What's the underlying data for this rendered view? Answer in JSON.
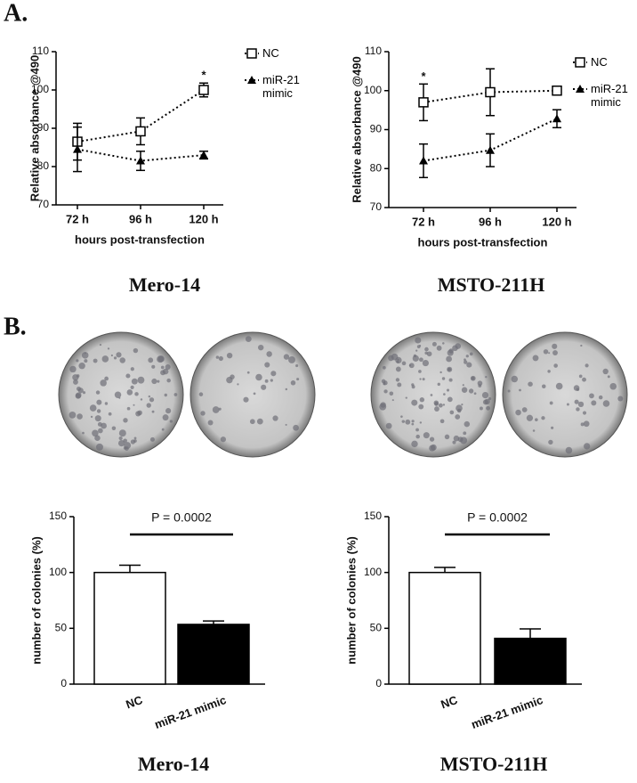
{
  "panel_labels": [
    "A.",
    "B."
  ],
  "chart_data": [
    {
      "type": "line",
      "caption": "Mero-14",
      "xlabel": "hours post-transfection",
      "ylabel": "Relative absorbance @490",
      "categories": [
        "72 h",
        "96 h",
        "120 h"
      ],
      "ylim": [
        70,
        110
      ],
      "yticks": [
        70,
        80,
        90,
        100,
        110
      ],
      "series": [
        {
          "name": "NC",
          "color": "#000000",
          "marker": "square-open",
          "values": [
            86.5,
            89.2,
            100
          ],
          "errors": [
            4.8,
            3.5,
            1.8
          ]
        },
        {
          "name": "miR-21 mimic",
          "color": "#000000",
          "marker": "triangle",
          "values": [
            84.5,
            81.5,
            83
          ],
          "errors": [
            5.8,
            2.5,
            1.0
          ]
        }
      ],
      "annotations": [
        {
          "text": "*",
          "x": "120 h"
        }
      ]
    },
    {
      "type": "line",
      "caption": "MSTO-211H",
      "xlabel": "hours post-transfection",
      "ylabel": "Relative absorbance @490",
      "categories": [
        "72 h",
        "96 h",
        "120 h"
      ],
      "ylim": [
        70,
        110
      ],
      "yticks": [
        70,
        80,
        90,
        100,
        110
      ],
      "series": [
        {
          "name": "NC",
          "color": "#000000",
          "marker": "square-open",
          "values": [
            97,
            99.6,
            100
          ],
          "errors": [
            4.7,
            6,
            0.8
          ]
        },
        {
          "name": "miR-21 mimic",
          "color": "#000000",
          "marker": "triangle",
          "values": [
            82,
            84.7,
            92.8
          ],
          "errors": [
            4.3,
            4.2,
            2.3
          ]
        }
      ],
      "annotations": [
        {
          "text": "*",
          "x": "72 h"
        }
      ]
    },
    {
      "type": "bar",
      "caption": "Mero-14",
      "ylabel": "number of colonies (%)",
      "categories": [
        "NC",
        "miR-21 mimic"
      ],
      "values": [
        100,
        53.5
      ],
      "errors": [
        6.5,
        3
      ],
      "colors": [
        "#ffffff",
        "#000000"
      ],
      "ylim": [
        0,
        150
      ],
      "yticks": [
        0,
        50,
        100,
        150
      ],
      "annotation": "P = 0.0002"
    },
    {
      "type": "bar",
      "caption": "MSTO-211H",
      "ylabel": "number of colonies (%)",
      "categories": [
        "NC",
        "miR-21 mimic"
      ],
      "values": [
        100,
        41
      ],
      "errors": [
        4.5,
        8.5
      ],
      "colors": [
        "#ffffff",
        "#000000"
      ],
      "ylim": [
        0,
        150
      ],
      "yticks": [
        0,
        50,
        100,
        150
      ],
      "annotation": "P = 0.0002"
    }
  ]
}
